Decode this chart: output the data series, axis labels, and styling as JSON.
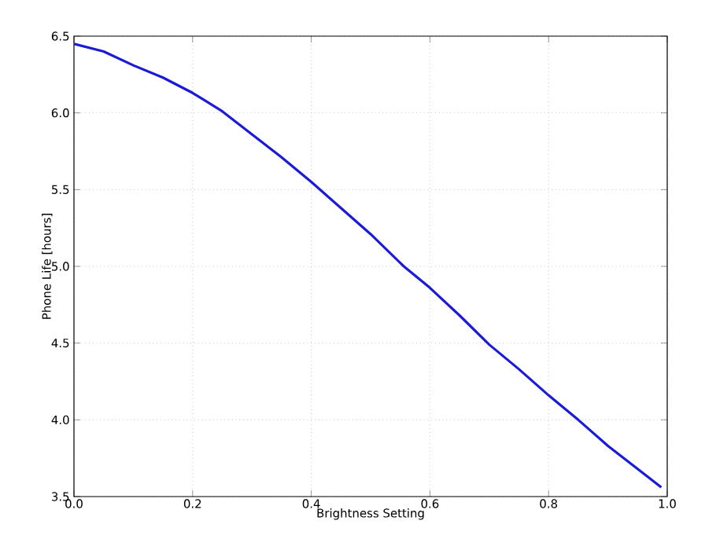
{
  "chart_data": {
    "type": "line",
    "xlabel": "Brightness Setting",
    "ylabel": "Phone Life [hours]",
    "x": [
      0,
      0.05,
      0.1,
      0.15,
      0.2,
      0.25,
      0.3,
      0.35,
      0.4,
      0.45,
      0.5,
      0.556,
      0.6,
      0.65,
      0.7,
      0.75,
      0.8,
      0.85,
      0.9,
      0.95,
      0.99
    ],
    "series": [
      {
        "color": "#1a1ad8",
        "values": [
          6.45,
          6.4,
          6.31,
          6.23,
          6.13,
          6.01,
          5.86,
          5.71,
          5.55,
          5.38,
          5.21,
          5.0,
          4.86,
          4.68,
          4.49,
          4.33,
          4.16,
          4.0,
          3.83,
          3.68,
          3.56
        ]
      }
    ],
    "xlim": [
      0,
      1
    ],
    "ylim": [
      3.5,
      6.5
    ],
    "xticks": [
      {
        "value": 0,
        "label": "0.0"
      },
      0.2,
      0.4,
      0.6,
      0.8,
      {
        "value": 1,
        "label": "1.0"
      }
    ],
    "yticks": [
      3.5,
      {
        "value": 4,
        "label": "4.0"
      },
      4.5,
      {
        "value": 5,
        "label": "5.0"
      },
      5.5,
      {
        "value": 6,
        "label": "6.0"
      },
      6.5
    ],
    "grid": true,
    "line_style": "solid",
    "marker": "none"
  }
}
